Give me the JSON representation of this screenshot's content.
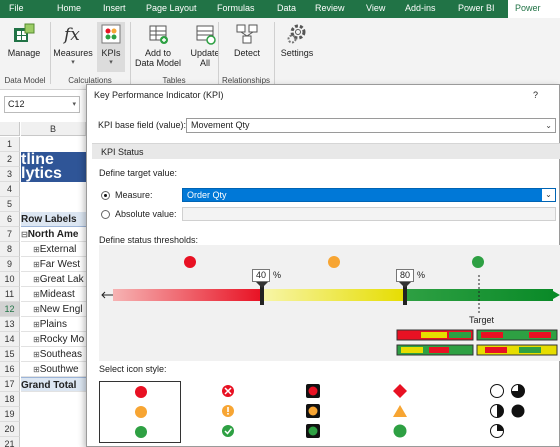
{
  "ribbon": {
    "tabs": [
      "File",
      "Home",
      "Insert",
      "Page Layout",
      "Formulas",
      "Data",
      "Review",
      "View",
      "Add-ins",
      "Power BI",
      "Power Piv"
    ],
    "buttons": {
      "manage": "Manage",
      "measures": "Measures",
      "kpis": "KPIs",
      "add_to_data_model_1": "Add to",
      "add_to_data_model_2": "Data Model",
      "update_all_1": "Update",
      "update_all_2": "All",
      "detect": "Detect",
      "settings": "Settings"
    },
    "groups": {
      "data_model": "Data Model",
      "calculations": "Calculations",
      "tables": "Tables",
      "relationships": "Relationships"
    }
  },
  "sheet": {
    "name_box": "C12",
    "column_b": "B",
    "title_line1": "tline",
    "title_line2": "lytics",
    "rows": [
      "1",
      "2",
      "3",
      "4",
      "5",
      "6",
      "7",
      "8",
      "9",
      "10",
      "11",
      "12",
      "13",
      "14",
      "15",
      "16",
      "17",
      "18",
      "19",
      "20",
      "21"
    ],
    "cells": {
      "r6": "Row Labels",
      "r7": "North Ame",
      "r8": "External",
      "r9": "Far West",
      "r10": "Great Lak",
      "r11": "Mideast",
      "r12": "New Engl",
      "r13": "Plains",
      "r14": "Rocky Mo",
      "r15": "Southeas",
      "r16": "Southwe",
      "r17": "Grand Total"
    }
  },
  "dialog": {
    "title": "Key Performance Indicator (KPI)",
    "help": "?",
    "base_field_label": "KPI base field (value):",
    "base_field_value": "Movement Qty",
    "section": "KPI Status",
    "define_target": "Define target value:",
    "measure_label": "Measure:",
    "measure_value": "Order Qty",
    "absolute_label": "Absolute value:",
    "thresholds_label": "Define status thresholds:",
    "threshold_low": "40",
    "threshold_high": "80",
    "percent": "%",
    "target_label": "Target",
    "icon_style_label": "Select icon style:"
  },
  "colors": {
    "excel_green": "#217346",
    "selection_blue": "#0078d7",
    "status_red": "#e81123",
    "status_amber": "#f7a533",
    "status_green": "#2ea043"
  }
}
